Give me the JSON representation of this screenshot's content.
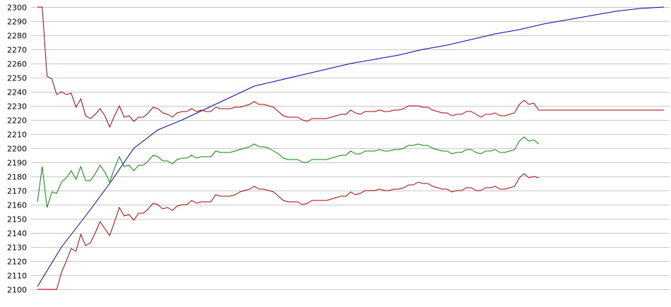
{
  "chart_data": {
    "type": "line",
    "title": "",
    "xlabel": "",
    "ylabel": "",
    "grid": true,
    "legend": "none",
    "ylim": [
      2100,
      2300
    ],
    "yticks": [
      2100,
      2110,
      2120,
      2130,
      2140,
      2150,
      2160,
      2170,
      2180,
      2190,
      2200,
      2210,
      2220,
      2230,
      2240,
      2250,
      2260,
      2270,
      2280,
      2290,
      2300
    ],
    "xlim": [
      0,
      130
    ],
    "series": [
      {
        "color": "#0000aa",
        "x": [
          0,
          5,
          10,
          15,
          20,
          25,
          30,
          35,
          40,
          45,
          50,
          55,
          60,
          65,
          70,
          75,
          80,
          85,
          90,
          95,
          100,
          105,
          110,
          115,
          120,
          125,
          130
        ],
        "values": [
          2102,
          2130,
          2152,
          2175,
          2200,
          2213,
          2220,
          2228,
          2236,
          2244,
          2248,
          2252,
          2256,
          2260,
          2263,
          2266,
          2270,
          2273,
          2277,
          2281,
          2284,
          2288,
          2291,
          2294,
          2297,
          2299,
          2300
        ]
      },
      {
        "color": "#aa0000",
        "x": [
          0,
          1,
          2,
          3,
          4,
          5,
          6,
          7,
          8,
          9,
          10,
          11,
          12,
          13,
          14,
          15,
          16,
          17,
          18,
          19,
          20,
          21,
          22,
          23,
          24,
          25,
          26,
          27,
          28,
          29,
          30,
          31,
          32,
          33,
          34,
          35,
          36,
          37,
          38,
          39,
          40,
          41,
          42,
          43,
          44,
          45,
          46,
          47,
          48,
          49,
          50,
          51,
          52,
          53,
          54,
          55,
          56,
          57,
          58,
          59,
          60,
          61,
          62,
          63,
          64,
          65,
          66,
          67,
          68,
          69,
          70,
          71,
          72,
          73,
          74,
          75,
          76,
          77,
          78,
          79,
          80,
          81,
          82,
          83,
          84,
          85,
          86,
          87,
          88,
          89,
          90,
          91,
          92,
          93,
          94,
          95,
          96,
          97,
          98,
          99,
          100,
          101,
          102,
          103,
          104,
          105,
          106,
          107,
          108,
          109,
          110,
          111,
          112,
          113,
          114,
          115,
          116,
          117,
          118,
          119,
          120,
          121,
          122,
          123,
          124,
          125,
          126,
          127,
          128,
          129,
          130
        ],
        "values": [
          2300,
          2300,
          2251,
          2249,
          2238,
          2240,
          2238,
          2239,
          2229,
          2235,
          2223,
          2221,
          2224,
          2228,
          2223,
          2215,
          2223,
          2230,
          2222,
          2223,
          2219,
          2222,
          2222,
          2225,
          2229,
          2228,
          2225,
          2224,
          2222,
          2225,
          2226,
          2226,
          2228,
          2226,
          2227,
          2226,
          2226,
          2229,
          2228,
          2228,
          2228,
          2229,
          2229,
          2230,
          2231,
          2233,
          2231,
          2231,
          2230,
          2229,
          2226,
          2223,
          2222,
          2222,
          2222,
          2220,
          2219,
          2221,
          2221,
          2221,
          2221,
          2222,
          2223,
          2224,
          2224,
          2227,
          2225,
          2224,
          2226,
          2226,
          2226,
          2227,
          2226,
          2226,
          2227,
          2227,
          2228,
          2230,
          2230,
          2230,
          2229,
          2229,
          2227,
          2226,
          2225,
          2225,
          2223,
          2224,
          2224,
          2226,
          2226,
          2224,
          2222,
          2224,
          2224,
          2225,
          2223,
          2223,
          2224,
          2225,
          2231,
          2234,
          2231,
          2232,
          2227,
          2227,
          2227,
          2227,
          2227,
          2227,
          2227,
          2227,
          2227,
          2227,
          2227,
          2227,
          2227,
          2227,
          2227,
          2227,
          2227,
          2227,
          2227,
          2227,
          2227,
          2227,
          2227,
          2227,
          2227,
          2227,
          2227
        ]
      },
      {
        "color": "#008800",
        "x": [
          0,
          1,
          2,
          3,
          4,
          5,
          6,
          7,
          8,
          9,
          10,
          11,
          12,
          13,
          14,
          15,
          16,
          17,
          18,
          19,
          20,
          21,
          22,
          23,
          24,
          25,
          26,
          27,
          28,
          29,
          30,
          31,
          32,
          33,
          34,
          35,
          36,
          37,
          38,
          39,
          40,
          41,
          42,
          43,
          44,
          45,
          46,
          47,
          48,
          49,
          50,
          51,
          52,
          53,
          54,
          55,
          56,
          57,
          58,
          59,
          60,
          61,
          62,
          63,
          64,
          65,
          66,
          67,
          68,
          69,
          70,
          71,
          72,
          73,
          74,
          75,
          76,
          77,
          78,
          79,
          80,
          81,
          82,
          83,
          84,
          85,
          86,
          87,
          88,
          89,
          90,
          91,
          92,
          93,
          94,
          95,
          96,
          97,
          98,
          99,
          100,
          101,
          102,
          103,
          104
        ],
        "values": [
          2162,
          2187,
          2158,
          2169,
          2168,
          2176,
          2179,
          2184,
          2178,
          2187,
          2177,
          2177,
          2182,
          2188,
          2183,
          2176,
          2186,
          2194,
          2187,
          2188,
          2184,
          2188,
          2188,
          2191,
          2195,
          2194,
          2191,
          2191,
          2189,
          2192,
          2193,
          2193,
          2195,
          2193,
          2194,
          2194,
          2194,
          2198,
          2197,
          2197,
          2197,
          2198,
          2199,
          2200,
          2201,
          2203,
          2201,
          2201,
          2200,
          2198,
          2196,
          2193,
          2192,
          2192,
          2192,
          2190,
          2190,
          2192,
          2192,
          2192,
          2192,
          2193,
          2194,
          2195,
          2195,
          2198,
          2196,
          2196,
          2198,
          2198,
          2198,
          2199,
          2198,
          2198,
          2199,
          2199,
          2200,
          2202,
          2202,
          2203,
          2202,
          2202,
          2200,
          2199,
          2198,
          2198,
          2196,
          2197,
          2197,
          2199,
          2199,
          2197,
          2196,
          2198,
          2198,
          2199,
          2197,
          2197,
          2198,
          2199,
          2205,
          2208,
          2205,
          2206,
          2203
        ]
      },
      {
        "color": "#aa0000",
        "x": [
          0,
          1,
          2,
          3,
          4,
          5,
          6,
          7,
          8,
          9,
          10,
          11,
          12,
          13,
          14,
          15,
          16,
          17,
          18,
          19,
          20,
          21,
          22,
          23,
          24,
          25,
          26,
          27,
          28,
          29,
          30,
          31,
          32,
          33,
          34,
          35,
          36,
          37,
          38,
          39,
          40,
          41,
          42,
          43,
          44,
          45,
          46,
          47,
          48,
          49,
          50,
          51,
          52,
          53,
          54,
          55,
          56,
          57,
          58,
          59,
          60,
          61,
          62,
          63,
          64,
          65,
          66,
          67,
          68,
          69,
          70,
          71,
          72,
          73,
          74,
          75,
          76,
          77,
          78,
          79,
          80,
          81,
          82,
          83,
          84,
          85,
          86,
          87,
          88,
          89,
          90,
          91,
          92,
          93,
          94,
          95,
          96,
          97,
          98,
          99,
          100,
          101,
          102,
          103,
          104
        ],
        "values": [
          2100,
          2100,
          2100,
          2100,
          2100,
          2112,
          2120,
          2129,
          2127,
          2139,
          2131,
          2133,
          2140,
          2148,
          2143,
          2138,
          2148,
          2158,
          2152,
          2153,
          2149,
          2154,
          2154,
          2157,
          2161,
          2160,
          2157,
          2158,
          2156,
          2159,
          2160,
          2160,
          2163,
          2161,
          2162,
          2162,
          2162,
          2167,
          2166,
          2166,
          2166,
          2167,
          2169,
          2170,
          2171,
          2173,
          2171,
          2171,
          2170,
          2169,
          2166,
          2163,
          2162,
          2162,
          2162,
          2160,
          2161,
          2163,
          2163,
          2163,
          2163,
          2164,
          2165,
          2166,
          2166,
          2169,
          2167,
          2168,
          2170,
          2170,
          2170,
          2171,
          2170,
          2170,
          2171,
          2171,
          2172,
          2174,
          2174,
          2176,
          2175,
          2175,
          2173,
          2172,
          2171,
          2171,
          2169,
          2170,
          2170,
          2172,
          2172,
          2170,
          2170,
          2172,
          2172,
          2173,
          2171,
          2171,
          2172,
          2173,
          2179,
          2182,
          2179,
          2180,
          2179
        ]
      }
    ]
  }
}
